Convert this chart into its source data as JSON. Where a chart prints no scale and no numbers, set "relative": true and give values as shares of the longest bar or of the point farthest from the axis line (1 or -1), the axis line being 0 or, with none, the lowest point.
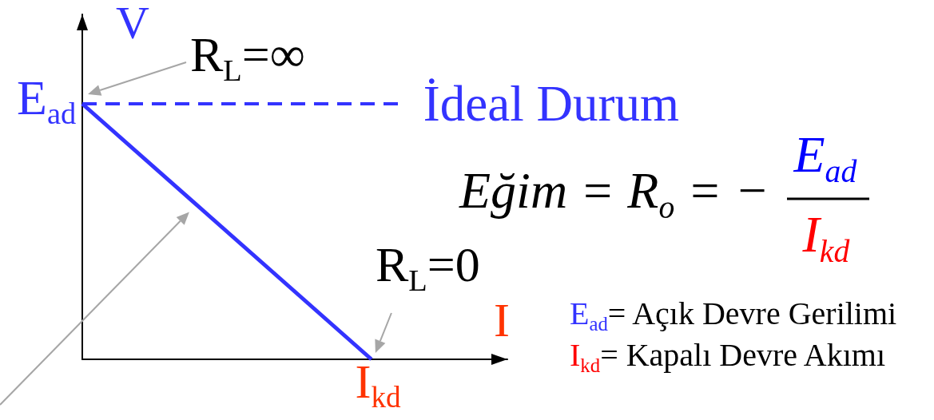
{
  "chart_data": {
    "type": "line",
    "relative": true,
    "xlabel": "I",
    "ylabel": "V",
    "categories": [
      null,
      null
    ],
    "series": [
      {
        "color": "#3333ff",
        "values": [
          1,
          0
        ]
      }
    ],
    "ref_lines": [
      {
        "axis": "y",
        "value": 1,
        "label": "İdeal Durum",
        "color": "#3333ff",
        "line_style": "dashed"
      }
    ],
    "annotations": [
      "R$_{L}$=∞",
      "R$_{L}$=0",
      "E$_{ad}$",
      "I$_{kd}$",
      "Eğim = R$_{o}$ = −",
      "E$_{ad}$",
      "I$_{kd}$",
      "E$_{ad}$= Açık Devre Gerilimi",
      "I$_{kd}$= Kapalı Devre Akımı"
    ]
  }
}
